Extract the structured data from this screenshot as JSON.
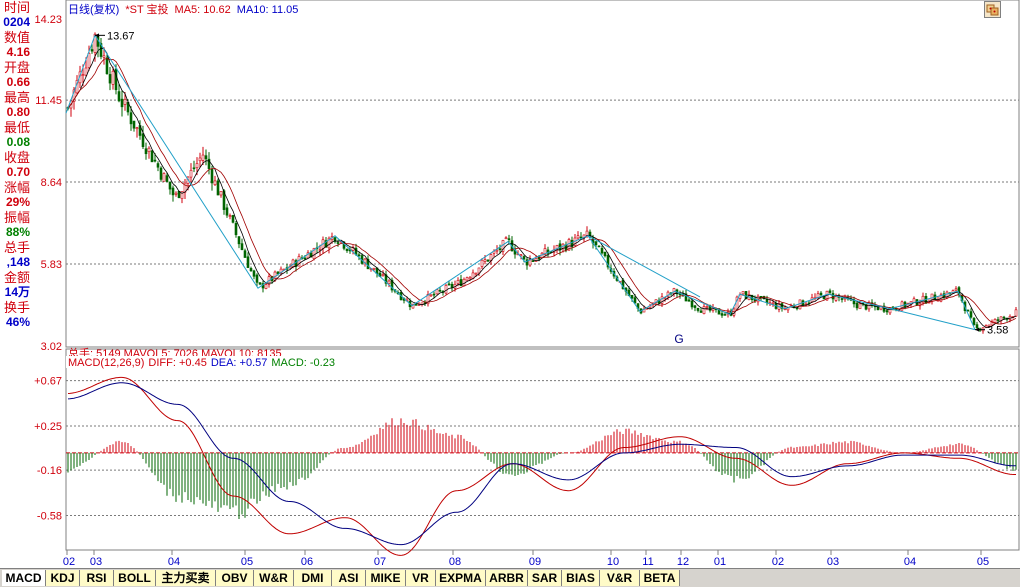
{
  "header": {
    "title": "日线(复权)",
    "stock": "*ST 宝投",
    "ma5": "MA5: 10.62",
    "ma10": "MA10: 11.05"
  },
  "info_panel": [
    {
      "label": "时间",
      "value": "0204",
      "color": "#0000c8"
    },
    {
      "label": "数值",
      "value": "4.16",
      "color": "#d0000c"
    },
    {
      "label": "开盘",
      "value": "0.66",
      "color": "#d0000c"
    },
    {
      "label": "最高",
      "value": "0.80",
      "color": "#d0000c"
    },
    {
      "label": "最低",
      "value": "0.08",
      "color": "#008000"
    },
    {
      "label": "收盘",
      "value": "0.70",
      "color": "#d0000c"
    },
    {
      "label": "涨幅",
      "value": "29%",
      "color": "#d0000c"
    },
    {
      "label": "振幅",
      "value": "88%",
      "color": "#008000"
    },
    {
      "label": "总手",
      "value": ",148",
      "color": "#0000c8"
    },
    {
      "label": "金额",
      "value": "14万",
      "color": "#0000c8"
    },
    {
      "label": "换手",
      "value": "46%",
      "color": "#0000c8"
    }
  ],
  "annotations": {
    "high": "13.67",
    "low": "3.58",
    "mark": "G"
  },
  "volume_label": "总手: 5149  MAVOL5: 7026  MAVOL10: 8135",
  "macd_header": {
    "name": "MACD(12,26,9)",
    "diff": "DIFF: +0.45",
    "dea": "DEA: +0.57",
    "macd": "MACD: -0.23"
  },
  "colors": {
    "up": "#d0000c",
    "down": "#006400",
    "ma5": "#000000",
    "ma10": "#a00000",
    "zigzag": "#22a0c8",
    "diff": "#c00000",
    "dea": "#000080",
    "grid": "#7a7a7a"
  },
  "chart_data": [
    {
      "type": "candlestick",
      "title": "日线(复权)",
      "y_ticks": [
        "14.23",
        "11.45",
        "8.64",
        "5.83",
        "3.02"
      ],
      "ylim": [
        3.02,
        14.23
      ],
      "x_ticks": [
        "02",
        "03",
        "04",
        "05",
        "06",
        "07",
        "08",
        "09",
        "10",
        "11",
        "12",
        "01",
        "02",
        "03",
        "04",
        "05"
      ],
      "grid": "dashed horizontal",
      "zigzag": {
        "x": [
          "02",
          "03",
          "05",
          "06",
          "07",
          "08",
          "09",
          "10",
          "11",
          "12",
          "01",
          "02",
          "03",
          "04",
          "05",
          "05"
        ],
        "y": [
          11.0,
          13.67,
          5.0,
          6.8,
          4.4,
          6.6,
          5.9,
          6.8,
          4.2,
          4.9,
          4.1,
          4.8,
          4.3,
          4.9,
          4.4,
          3.58
        ]
      }
    },
    {
      "type": "line",
      "title": "MACD(12,26,9)",
      "y_ticks": [
        "+0.67",
        "+0.25",
        "-0.16",
        "-0.58"
      ],
      "ylim": [
        -0.9,
        0.75
      ],
      "series": [
        {
          "name": "DIFF",
          "values": [
            0.55,
            0.7,
            0.3,
            -0.4,
            -0.75,
            -0.6,
            -0.95,
            -0.35,
            -0.1,
            -0.35,
            0.05,
            0.15,
            -0.05,
            -0.3,
            -0.1,
            0.0,
            -0.05,
            -0.2
          ]
        },
        {
          "name": "DEA",
          "values": [
            0.5,
            0.65,
            0.45,
            -0.05,
            -0.45,
            -0.7,
            -0.85,
            -0.55,
            -0.1,
            -0.25,
            0.0,
            0.08,
            0.05,
            -0.22,
            -0.12,
            -0.02,
            -0.02,
            -0.12
          ]
        },
        {
          "name": "MACD",
          "values": [
            -0.16,
            0.1,
            -0.4,
            -0.55,
            -0.3,
            0.05,
            0.3,
            0.15,
            -0.2,
            0.0,
            0.2,
            0.1,
            -0.25,
            0.05,
            0.1,
            0.0,
            0.08,
            -0.15
          ]
        }
      ]
    }
  ],
  "tabs": [
    "MACD",
    "KDJ",
    "RSI",
    "BOLL",
    "主力买卖",
    "OBV",
    "W&R",
    "DMI",
    "ASI",
    "MIKE",
    "VR",
    "EXPMA",
    "ARBR",
    "SAR",
    "BIAS",
    "V&R",
    "BETA"
  ],
  "active_tab": "MACD"
}
